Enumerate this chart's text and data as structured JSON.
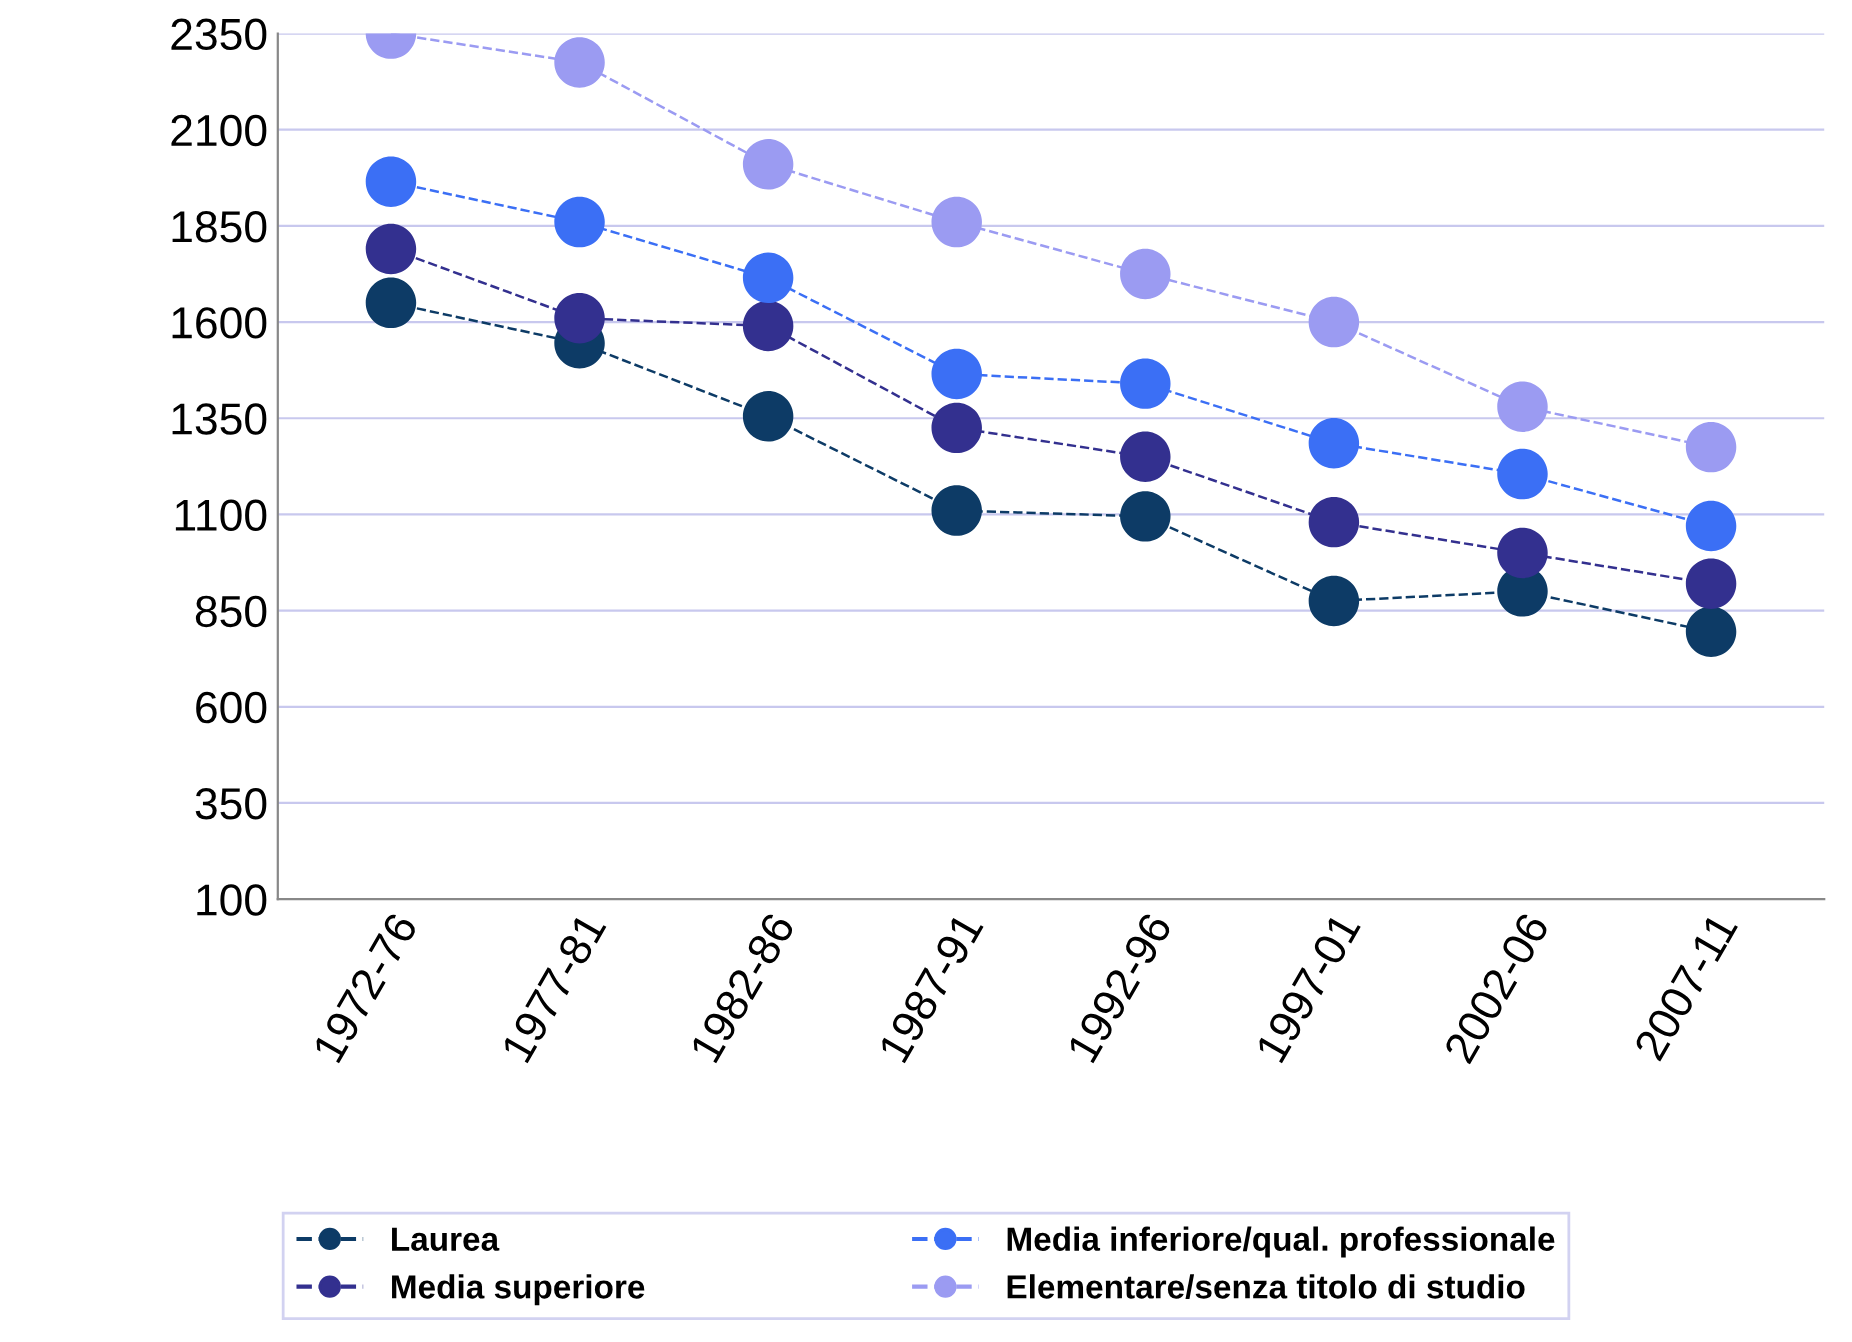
{
  "chart_data": {
    "type": "line",
    "categories": [
      "1972-76",
      "1977-81",
      "1982-86",
      "1987-91",
      "1992-96",
      "1997-01",
      "2002-06",
      "2007-11"
    ],
    "series": [
      {
        "name": "Laurea",
        "color": "#0d3b66",
        "values": [
          1650,
          1545,
          1355,
          1110,
          1095,
          875,
          900,
          795
        ]
      },
      {
        "name": "Media superiore",
        "color": "#33308f",
        "values": [
          1790,
          1610,
          1590,
          1325,
          1250,
          1080,
          1000,
          920
        ]
      },
      {
        "name": "Media inferiore/qual. professionale",
        "color": "#3b6ff5",
        "values": [
          1965,
          1860,
          1715,
          1465,
          1440,
          1285,
          1205,
          1070
        ]
      },
      {
        "name": "Elementare/senza titolo di studio",
        "color": "#9b9bf2",
        "values": [
          2350,
          2275,
          2010,
          1860,
          1725,
          1600,
          1380,
          1275
        ]
      }
    ],
    "ylim": [
      100,
      2350
    ],
    "yticks": [
      100,
      350,
      600,
      850,
      1100,
      1350,
      1600,
      1850,
      2100,
      2350
    ],
    "grid": "y",
    "legend": "bottom",
    "marker": "circle",
    "line_style": "dashed"
  }
}
